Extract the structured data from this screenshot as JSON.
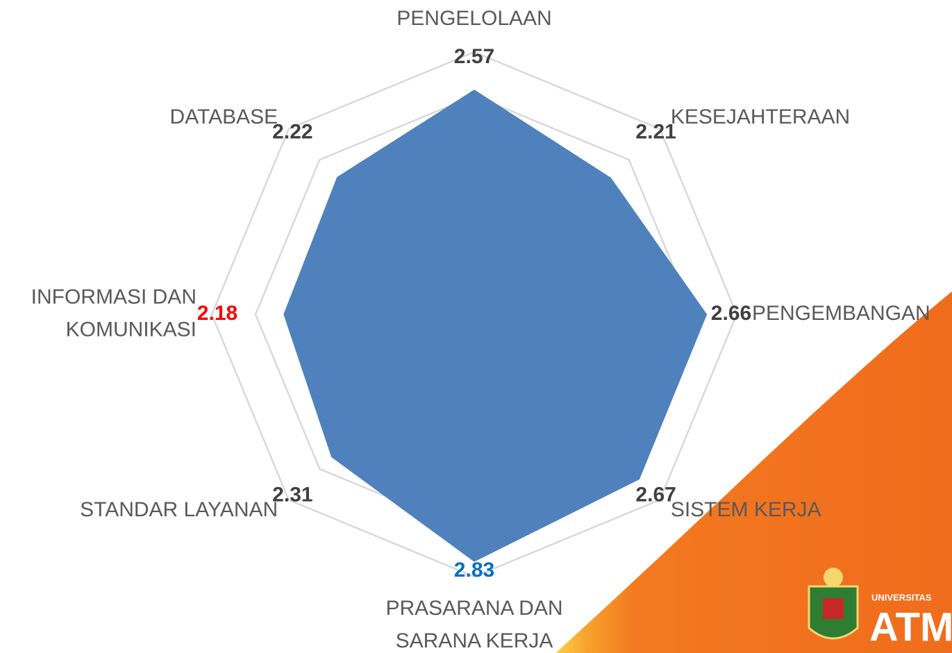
{
  "chart_data": {
    "type": "radar",
    "categories": [
      [
        "PENGELOLAAN"
      ],
      [
        "KESEJAHTERAAN"
      ],
      [
        "PENGEMBANGAN"
      ],
      [
        "SISTEM KERJA"
      ],
      [
        "PRASARANA DAN",
        "SARANA KERJA"
      ],
      [
        "STANDAR LAYANAN"
      ],
      [
        "INFORMASI DAN",
        "KOMUNIKASI"
      ],
      [
        "DATABASE"
      ]
    ],
    "values": [
      2.57,
      2.21,
      2.66,
      2.67,
      2.83,
      2.31,
      2.18,
      2.22
    ],
    "color": "#4f81bd",
    "value_label_colors": [
      "#404040",
      "#404040",
      "#404040",
      "#404040",
      "#0070c0",
      "#404040",
      "#ff0000",
      "#404040"
    ],
    "rlim": [
      0,
      3
    ],
    "rticks": [
      0.5,
      1,
      1.5,
      2,
      2.5,
      3
    ],
    "grid": true
  },
  "logo": {
    "small": "UNIVERSITAS",
    "big": "ATM"
  }
}
